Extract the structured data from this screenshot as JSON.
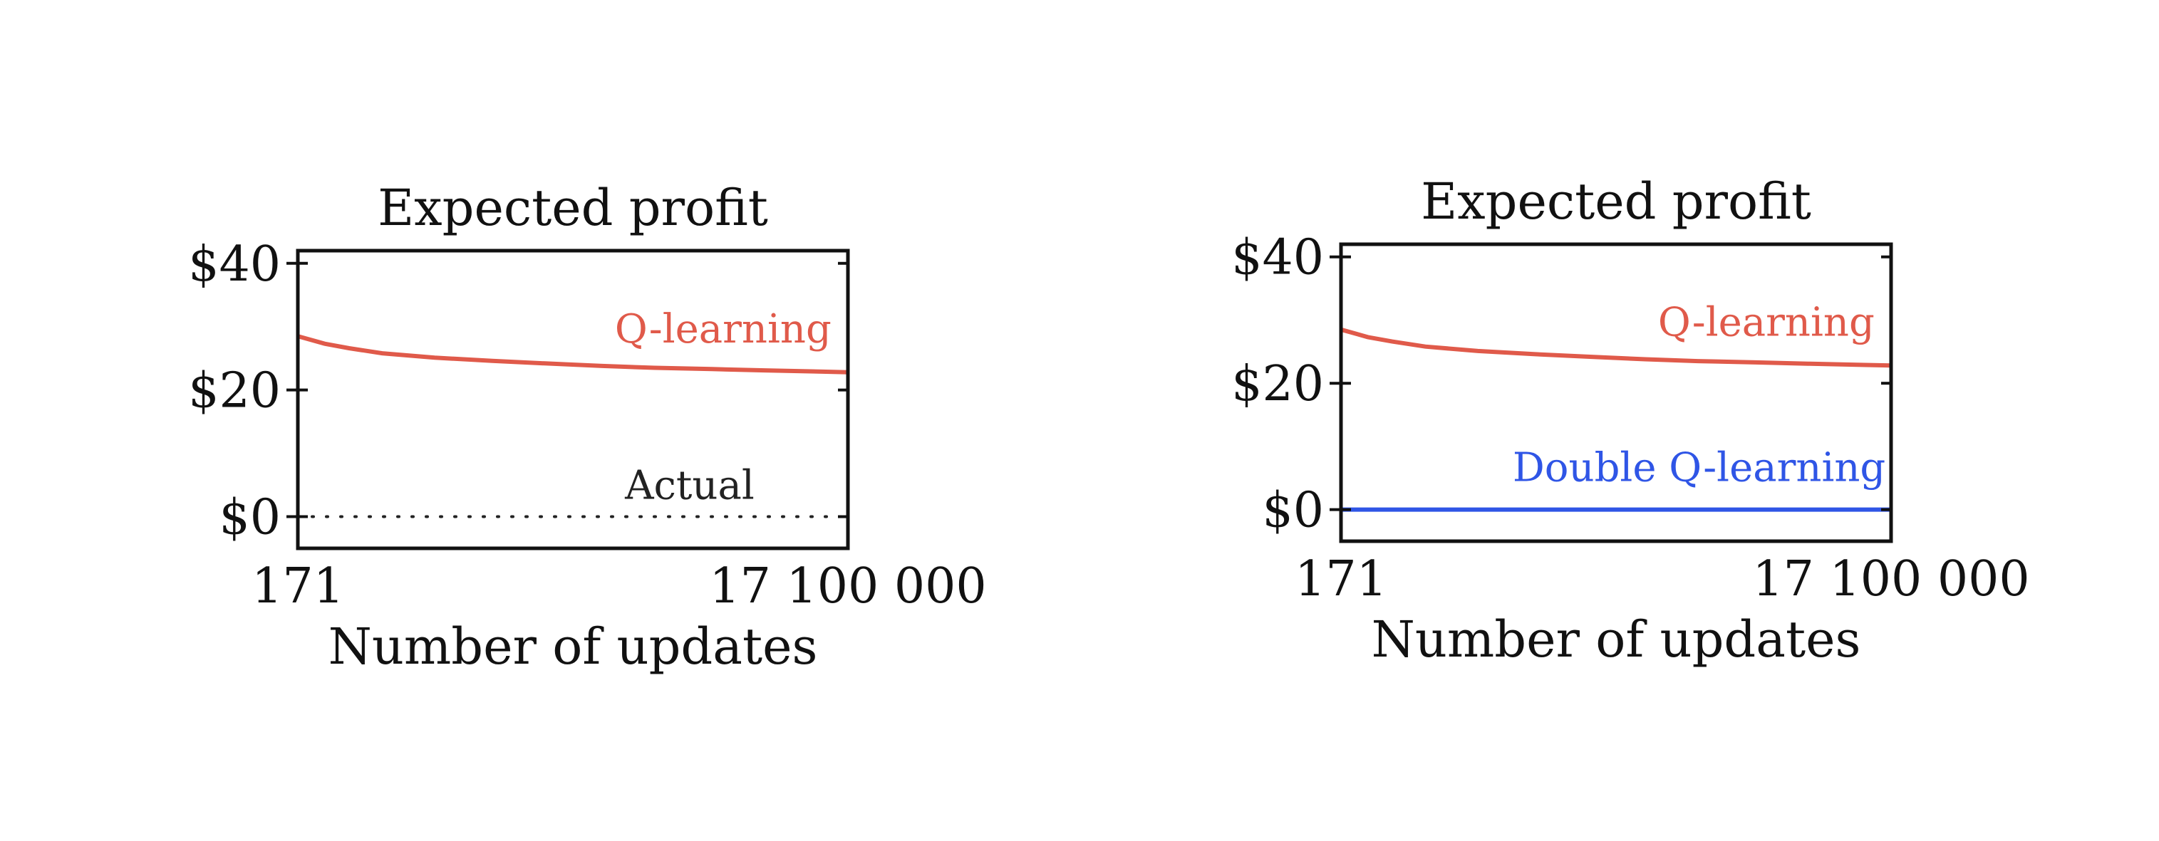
{
  "chart_data": [
    {
      "type": "line",
      "title": "Expected profit",
      "xlabel": "Number of updates",
      "ylabel": "",
      "x_scale": "log",
      "xlim": [
        171,
        17100000
      ],
      "x_tick_labels": [
        "171",
        "17 100 000"
      ],
      "ylim": [
        -5,
        42
      ],
      "y_ticks": [
        0,
        20,
        40
      ],
      "y_tick_labels": [
        "$0",
        "$20",
        "$40"
      ],
      "grid": false,
      "series": [
        {
          "name": "Q-learning",
          "color": "#e05a4a",
          "style": "solid",
          "x": [
            171,
            300,
            500,
            1000,
            3000,
            10000,
            30000,
            100000,
            300000,
            1000000,
            3000000,
            10000000,
            17100000
          ],
          "y": [
            28.5,
            27.3,
            26.6,
            25.8,
            25.1,
            24.6,
            24.2,
            23.8,
            23.5,
            23.3,
            23.1,
            22.9,
            22.8
          ]
        },
        {
          "name": "Actual",
          "color": "#222222",
          "style": "dotted",
          "x": [
            171,
            17100000
          ],
          "y": [
            0,
            0
          ]
        }
      ]
    },
    {
      "type": "line",
      "title": "Expected profit",
      "xlabel": "Number of updates",
      "ylabel": "",
      "x_scale": "log",
      "xlim": [
        171,
        17100000
      ],
      "x_tick_labels": [
        "171",
        "17 100 000"
      ],
      "ylim": [
        -5,
        42
      ],
      "y_ticks": [
        0,
        20,
        40
      ],
      "y_tick_labels": [
        "$0",
        "$20",
        "$40"
      ],
      "grid": false,
      "series": [
        {
          "name": "Q-learning",
          "color": "#e05a4a",
          "style": "solid",
          "x": [
            171,
            300,
            500,
            1000,
            3000,
            10000,
            30000,
            100000,
            300000,
            1000000,
            3000000,
            10000000,
            17100000
          ],
          "y": [
            28.5,
            27.3,
            26.6,
            25.8,
            25.1,
            24.6,
            24.2,
            23.8,
            23.5,
            23.3,
            23.1,
            22.9,
            22.8
          ]
        },
        {
          "name": "Double Q-learning",
          "color": "#2f55e6",
          "style": "solid",
          "x": [
            171,
            17100000
          ],
          "y": [
            0,
            0
          ]
        }
      ]
    }
  ]
}
